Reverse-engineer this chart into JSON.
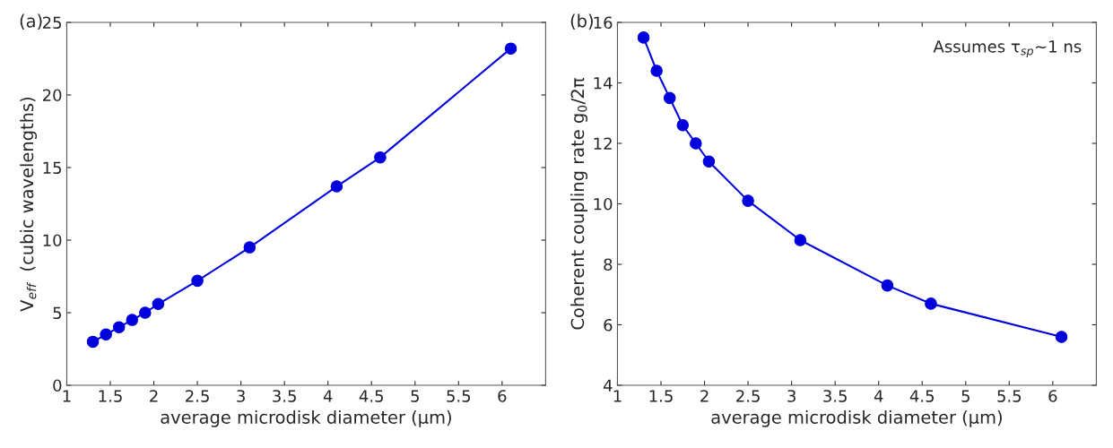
{
  "chart_data": [
    {
      "type": "line",
      "title": "(a)",
      "xlabel": "average microdisk diameter (µm)",
      "ylabel": "V$_{eff}$  (cubic wavelengths)",
      "marker": "circle",
      "line_style": "solid",
      "grid": false,
      "legend": false,
      "x": [
        1.3,
        1.45,
        1.6,
        1.75,
        1.9,
        2.05,
        2.5,
        3.1,
        4.1,
        4.6,
        6.1
      ],
      "series": [
        {
          "color": "#0000dd",
          "values": [
            3.0,
            3.5,
            4.0,
            4.5,
            5.0,
            5.6,
            7.2,
            9.5,
            13.7,
            15.7,
            23.2
          ]
        }
      ],
      "xlim": [
        1,
        6.5
      ],
      "xticks": [
        1,
        1.5,
        2,
        2.5,
        3,
        3.5,
        4,
        4.5,
        5,
        5.5,
        6
      ],
      "ylim": [
        0,
        25
      ],
      "yticks": [
        0,
        5,
        10,
        15,
        20,
        25
      ]
    },
    {
      "type": "line",
      "title": "(b)",
      "xlabel": "average microdisk diameter (µm)",
      "ylabel": "Coherent coupling rate g$_{0}$/2π",
      "marker": "circle",
      "line_style": "solid",
      "grid": false,
      "legend": false,
      "annotations": [
        "Assumes τ$_{sp}$~1 ns"
      ],
      "x": [
        1.3,
        1.45,
        1.6,
        1.75,
        1.9,
        2.05,
        2.5,
        3.1,
        4.1,
        4.6,
        6.1
      ],
      "series": [
        {
          "color": "#0000dd",
          "values": [
            15.5,
            14.4,
            13.5,
            12.6,
            12.0,
            11.4,
            10.1,
            8.8,
            7.3,
            6.7,
            5.6
          ]
        }
      ],
      "xlim": [
        1,
        6.5
      ],
      "xticks": [
        1,
        1.5,
        2,
        2.5,
        3,
        3.5,
        4,
        4.5,
        5,
        5.5,
        6
      ],
      "ylim": [
        4,
        16
      ],
      "yticks": [
        4,
        6,
        8,
        10,
        12,
        14,
        16
      ]
    }
  ]
}
